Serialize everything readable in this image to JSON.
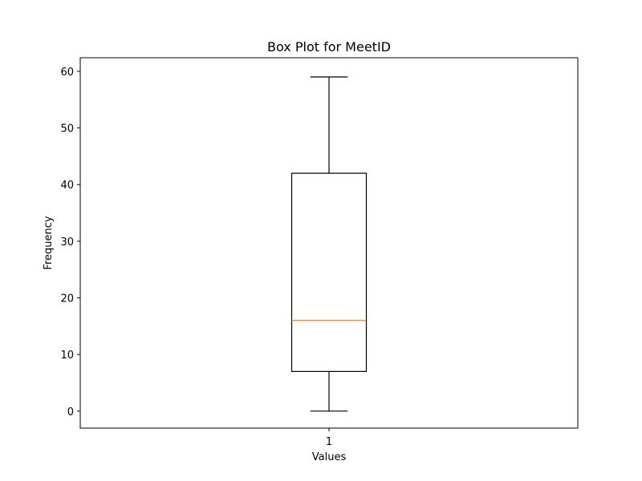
{
  "chart_data": {
    "type": "box",
    "title": "Box Plot for MeetID",
    "xlabel": "Values",
    "ylabel": "Frequency",
    "categories": [
      "1"
    ],
    "ylim": [
      -3,
      62.4
    ],
    "yticks": [
      0,
      10,
      20,
      30,
      40,
      50,
      60
    ],
    "grid": false,
    "boxes": [
      {
        "category": "1",
        "whisker_low": 0,
        "q1": 7,
        "median": 16,
        "q3": 42,
        "whisker_high": 59
      }
    ],
    "colors": {
      "box": "#000000",
      "median": "#ff7f0e"
    }
  }
}
